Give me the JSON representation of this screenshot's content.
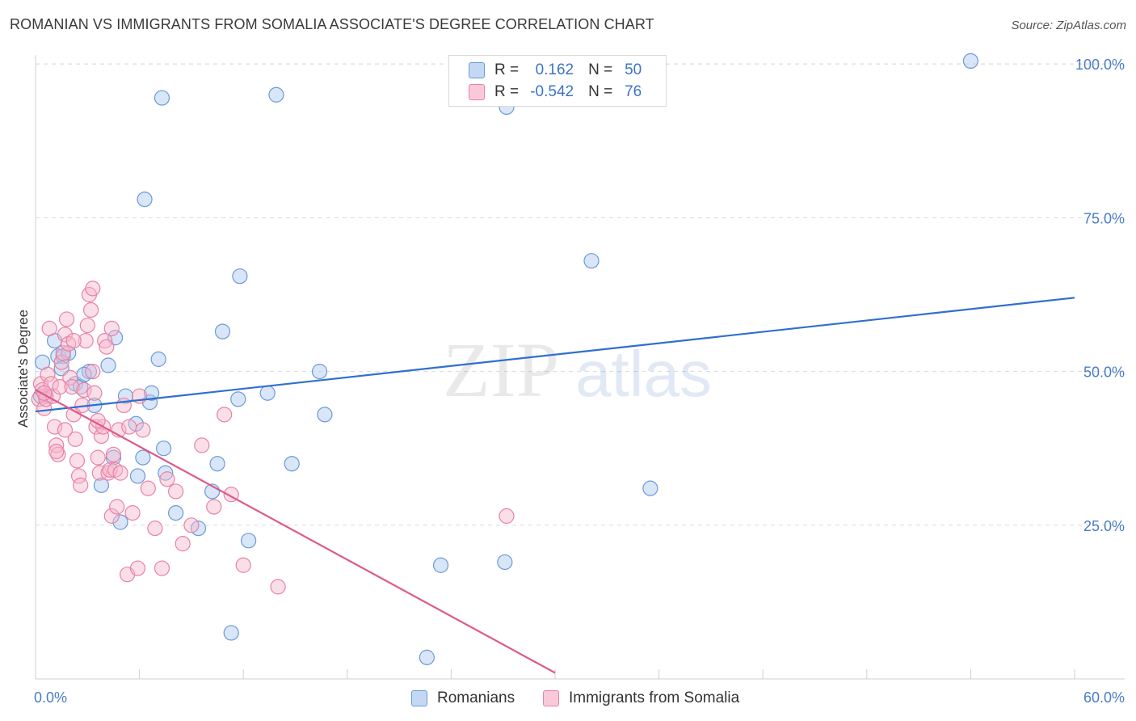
{
  "title": "ROMANIAN VS IMMIGRANTS FROM SOMALIA ASSOCIATE'S DEGREE CORRELATION CHART",
  "source": "Source: ZipAtlas.com",
  "watermark": {
    "zip": "ZIP",
    "atlas": "atlas"
  },
  "colors": {
    "blue_fill": "#aac8f0",
    "blue_stroke": "#6a9ad8",
    "blue_line": "#2f6fcf",
    "pink_fill": "#f7b8cc",
    "pink_stroke": "#e882a4",
    "pink_line": "#e0588a",
    "grid": "#dcdcdc",
    "tick_text": "#4a7cc7"
  },
  "legend_top": [
    {
      "r_label": "R =",
      "r_value": "0.162",
      "n_label": "N =",
      "n_value": "50"
    },
    {
      "r_label": "R =",
      "r_value": "-0.542",
      "n_label": "N =",
      "n_value": "76"
    }
  ],
  "legend_bottom": [
    "Romanians",
    "Immigrants from Somalia"
  ],
  "chart_data": {
    "type": "scatter",
    "title": "ROMANIAN VS IMMIGRANTS FROM SOMALIA ASSOCIATE'S DEGREE CORRELATION CHART",
    "xlabel": "",
    "ylabel": "Associate's Degree",
    "xlim": [
      0,
      60
    ],
    "ylim": [
      0,
      102
    ],
    "x_tick_labels": [
      "0.0%",
      "60.0%"
    ],
    "y_ticks": [
      25,
      50,
      75,
      100
    ],
    "y_tick_labels": [
      "25.0%",
      "50.0%",
      "75.0%",
      "100.0%"
    ],
    "grid": true,
    "series": [
      {
        "name": "Romanians",
        "r": 0.162,
        "n": 50,
        "trend": {
          "x": [
            0,
            60
          ],
          "y": [
            43.5,
            62
          ]
        },
        "points": [
          [
            0.4,
            51.5
          ],
          [
            0.6,
            46
          ],
          [
            1.1,
            55
          ],
          [
            1.3,
            52.5
          ],
          [
            1.6,
            52.5
          ],
          [
            1.5,
            50.5
          ],
          [
            1.9,
            53
          ],
          [
            2.3,
            48
          ],
          [
            2.6,
            47.5
          ],
          [
            3.1,
            50
          ],
          [
            3.4,
            44.5
          ],
          [
            4.2,
            51
          ],
          [
            4.5,
            36
          ],
          [
            3.8,
            31.5
          ],
          [
            4.6,
            55.5
          ],
          [
            5.8,
            41.5
          ],
          [
            6.2,
            36
          ],
          [
            5.9,
            33
          ],
          [
            5.2,
            46
          ],
          [
            6.6,
            45
          ],
          [
            6.7,
            46.5
          ],
          [
            7.1,
            52
          ],
          [
            7.3,
            94.5
          ],
          [
            6.3,
            78
          ],
          [
            7.5,
            33.5
          ],
          [
            7.4,
            37.5
          ],
          [
            8.1,
            27
          ],
          [
            9.4,
            24.5
          ],
          [
            10.2,
            30.5
          ],
          [
            10.5,
            35
          ],
          [
            10.8,
            56.5
          ],
          [
            11.8,
            65.5
          ],
          [
            11.3,
            7.5
          ],
          [
            12.3,
            22.5
          ],
          [
            11.7,
            45.5
          ],
          [
            13.4,
            46.5
          ],
          [
            13.9,
            95
          ],
          [
            14.8,
            35
          ],
          [
            16.4,
            50
          ],
          [
            16.7,
            43
          ],
          [
            22.6,
            3.5
          ],
          [
            23.4,
            18.5
          ],
          [
            27.2,
            93
          ],
          [
            27.1,
            19
          ],
          [
            32.1,
            68
          ],
          [
            35.5,
            31
          ],
          [
            54.0,
            100.5
          ],
          [
            0.3,
            46
          ],
          [
            2.8,
            49.5
          ],
          [
            4.9,
            25.5
          ]
        ]
      },
      {
        "name": "Immigrants from Somalia",
        "r": -0.542,
        "n": 76,
        "trend": {
          "x": [
            0,
            30
          ],
          "y": [
            47,
            1
          ]
        },
        "points": [
          [
            0.2,
            45.5
          ],
          [
            0.3,
            48
          ],
          [
            0.4,
            47
          ],
          [
            0.5,
            44
          ],
          [
            0.6,
            45.5
          ],
          [
            0.7,
            49.5
          ],
          [
            0.8,
            57
          ],
          [
            0.9,
            48
          ],
          [
            1.0,
            46
          ],
          [
            1.1,
            41
          ],
          [
            1.2,
            38
          ],
          [
            1.3,
            36.5
          ],
          [
            1.4,
            47.5
          ],
          [
            1.5,
            51.5
          ],
          [
            1.6,
            53
          ],
          [
            1.7,
            56
          ],
          [
            1.8,
            58.5
          ],
          [
            1.9,
            54.5
          ],
          [
            2.0,
            49
          ],
          [
            2.1,
            47.5
          ],
          [
            2.2,
            43
          ],
          [
            2.3,
            39
          ],
          [
            2.4,
            35.5
          ],
          [
            2.5,
            33
          ],
          [
            2.6,
            31.5
          ],
          [
            2.7,
            44.5
          ],
          [
            2.8,
            47
          ],
          [
            2.9,
            55
          ],
          [
            3.0,
            57.5
          ],
          [
            3.1,
            62.5
          ],
          [
            3.2,
            60
          ],
          [
            3.3,
            50
          ],
          [
            3.4,
            46.5
          ],
          [
            3.5,
            41
          ],
          [
            3.6,
            36
          ],
          [
            3.7,
            33.5
          ],
          [
            3.8,
            39.5
          ],
          [
            3.9,
            41
          ],
          [
            4.0,
            55
          ],
          [
            4.1,
            54
          ],
          [
            4.2,
            33.5
          ],
          [
            4.3,
            34
          ],
          [
            4.4,
            26.5
          ],
          [
            4.5,
            36.5
          ],
          [
            4.6,
            34
          ],
          [
            4.7,
            28
          ],
          [
            4.8,
            40.5
          ],
          [
            4.9,
            33.5
          ],
          [
            5.1,
            44.5
          ],
          [
            5.3,
            17
          ],
          [
            5.6,
            27
          ],
          [
            5.9,
            18
          ],
          [
            6.2,
            40.5
          ],
          [
            6.5,
            31
          ],
          [
            6.9,
            24.5
          ],
          [
            7.3,
            18
          ],
          [
            7.6,
            32.5
          ],
          [
            8.1,
            30.5
          ],
          [
            8.5,
            22
          ],
          [
            9.0,
            25
          ],
          [
            9.6,
            38
          ],
          [
            10.3,
            28
          ],
          [
            10.9,
            43
          ],
          [
            11.3,
            30
          ],
          [
            12.0,
            18.5
          ],
          [
            14.0,
            15
          ],
          [
            27.2,
            26.5
          ],
          [
            1.2,
            37
          ],
          [
            0.5,
            46.5
          ],
          [
            2.2,
            55
          ],
          [
            3.3,
            63.5
          ],
          [
            1.7,
            40.5
          ],
          [
            4.4,
            57
          ],
          [
            6.0,
            46
          ],
          [
            3.6,
            42
          ],
          [
            5.4,
            41
          ]
        ]
      }
    ]
  }
}
